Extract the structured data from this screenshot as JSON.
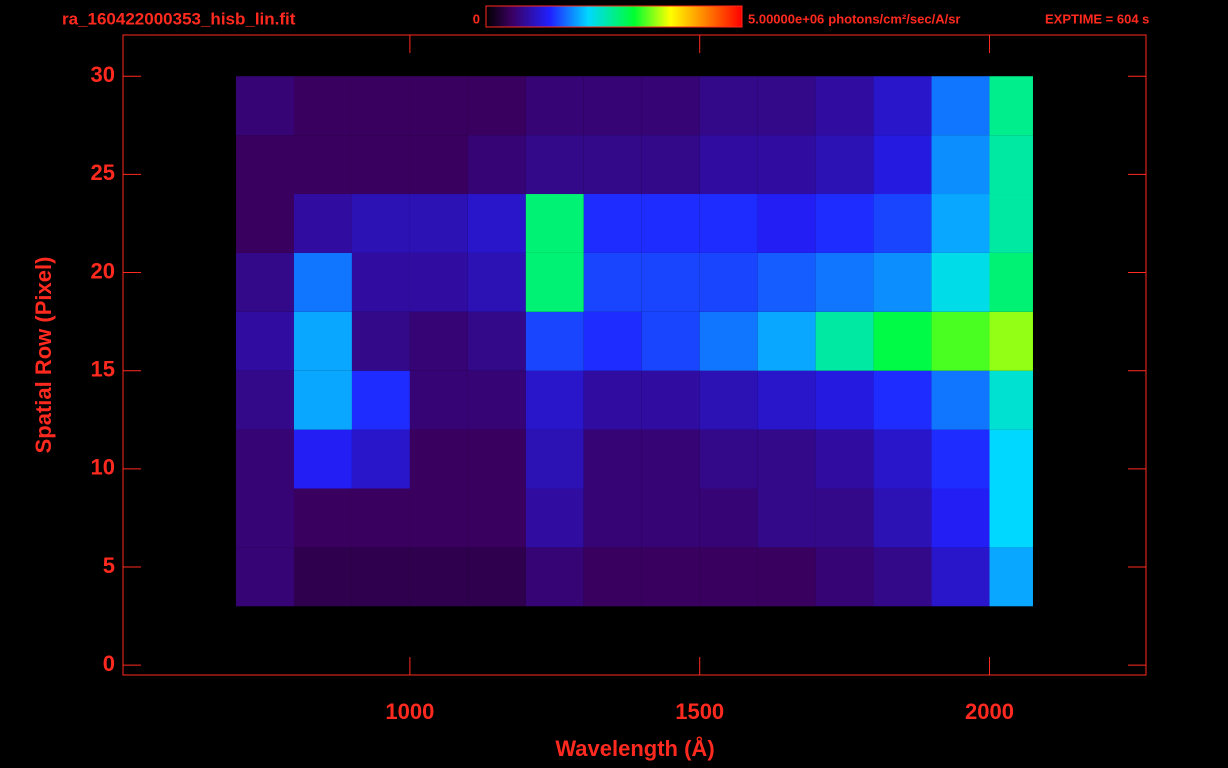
{
  "chart_data": {
    "type": "heatmap",
    "title": "ra_160422000353_hisb_lin.fit",
    "annotation": "EXPTIME = 604 s",
    "xlabel": "Wavelength (Å)",
    "ylabel": "Spatial Row (Pixel)",
    "xbins": [
      700,
      800,
      900,
      1000,
      1100,
      1200,
      1300,
      1400,
      1500,
      1600,
      1700,
      1800,
      1900,
      2000,
      2075
    ],
    "ybins": [
      3,
      6,
      9,
      12,
      15,
      18,
      21,
      24,
      27,
      30
    ],
    "values": [
      [
        600000,
        400000,
        400000,
        400000,
        400000,
        600000,
        500000,
        500000,
        500000,
        500000,
        600000,
        700000,
        1000000,
        1800000
      ],
      [
        600000,
        500000,
        500000,
        500000,
        500000,
        800000,
        600000,
        600000,
        600000,
        700000,
        700000,
        900000,
        1200000,
        2000000
      ],
      [
        600000,
        1200000,
        1000000,
        500000,
        500000,
        900000,
        600000,
        600000,
        700000,
        700000,
        800000,
        1000000,
        1300000,
        2000000
      ],
      [
        700000,
        1800000,
        1300000,
        600000,
        600000,
        1000000,
        800000,
        800000,
        900000,
        1000000,
        1100000,
        1300000,
        1600000,
        2200000
      ],
      [
        800000,
        1800000,
        700000,
        600000,
        700000,
        1400000,
        1300000,
        1400000,
        1600000,
        1800000,
        2400000,
        2800000,
        3100000,
        3300000
      ],
      [
        700000,
        1600000,
        800000,
        800000,
        900000,
        2600000,
        1400000,
        1400000,
        1400000,
        1500000,
        1600000,
        1700000,
        2100000,
        2600000
      ],
      [
        500000,
        800000,
        900000,
        900000,
        1000000,
        2600000,
        1300000,
        1300000,
        1300000,
        1200000,
        1300000,
        1400000,
        1800000,
        2400000
      ],
      [
        500000,
        500000,
        500000,
        500000,
        600000,
        700000,
        700000,
        700000,
        800000,
        800000,
        900000,
        1100000,
        1700000,
        2400000
      ],
      [
        600000,
        500000,
        500000,
        500000,
        500000,
        600000,
        600000,
        600000,
        700000,
        700000,
        800000,
        1000000,
        1600000,
        2500000
      ]
    ],
    "xlim": [
      505,
      2270
    ],
    "ylim": [
      -0.5,
      32.1
    ],
    "xticks": [
      1000,
      1500,
      2000
    ],
    "yticks": [
      0,
      5,
      10,
      15,
      20,
      25,
      30
    ],
    "zlim": [
      0,
      5000000
    ],
    "zticks": [
      0,
      {
        "value": 5000000,
        "label": "5.00000e+06"
      }
    ],
    "zunit": "photons/cm²/sec/A/sr",
    "color": "#ff2a1f"
  }
}
